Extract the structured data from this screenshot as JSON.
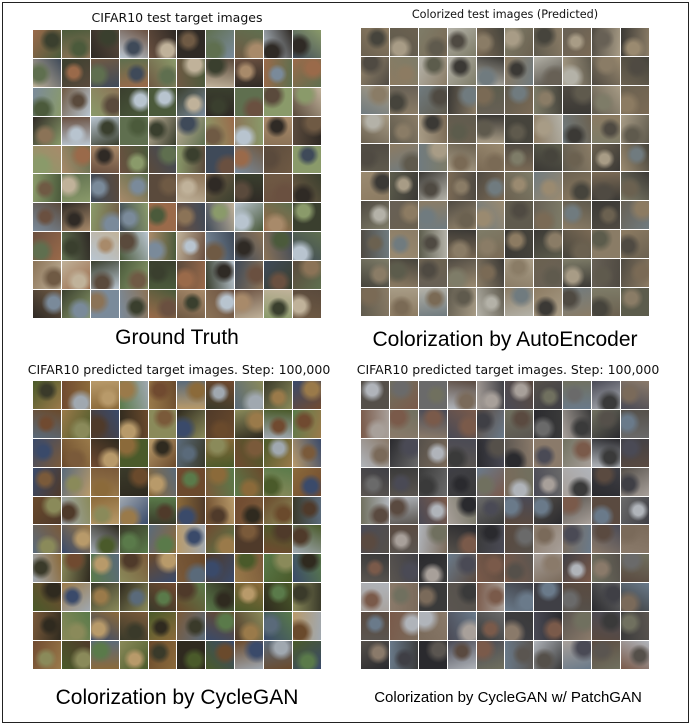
{
  "panels": [
    {
      "title": "CIFAR10 test target images",
      "caption": "Ground Truth",
      "palette": [
        "#5a4a3c",
        "#6f5a44",
        "#8b7357",
        "#4b5a3b",
        "#3f4a59",
        "#a88a6a",
        "#2f2a25",
        "#7a8a9a",
        "#c0b29a",
        "#5f6f4f",
        "#9a6a4a",
        "#3a3f2e",
        "#b8c4cf",
        "#6a5040",
        "#8a9a6a"
      ]
    },
    {
      "title": "Colorized test images (Predicted)",
      "caption": "Colorization by AutoEncoder",
      "palette": [
        "#6b6150",
        "#7a6a55",
        "#5f5a4d",
        "#8a7c66",
        "#4f4a42",
        "#9a8a70",
        "#3b3935",
        "#707b7f",
        "#a89c86",
        "#5c5c4c",
        "#8c7b62",
        "#46443c",
        "#b4b2a8",
        "#676055",
        "#7e7c68"
      ]
    },
    {
      "title": "CIFAR10 predicted target images. Step: 100,000",
      "caption": "Colorization by CycleGAN",
      "palette": [
        "#6a4a2c",
        "#8b6a3a",
        "#4a5a2a",
        "#3a4a6a",
        "#9a7a4a",
        "#2f2a1f",
        "#7a5a3a",
        "#5a6a7a",
        "#b89a6a",
        "#4f3a2a",
        "#8a8a5a",
        "#3a3a2a",
        "#a0a8b0",
        "#704a30",
        "#5a7a4a"
      ]
    },
    {
      "title": "CIFAR10 predicted target images. Step: 100,000",
      "caption": "Colorization by CycleGAN w/ PatchGAN",
      "palette": [
        "#5a4a40",
        "#6a6a6a",
        "#4a4a55",
        "#7a6a5a",
        "#3f3f45",
        "#8a7a6a",
        "#2a2a2e",
        "#6a7a8a",
        "#a8a09a",
        "#55504a",
        "#7a5a4a",
        "#3a3a3a",
        "#b0b4ba",
        "#5a5550",
        "#70705f"
      ]
    }
  ]
}
